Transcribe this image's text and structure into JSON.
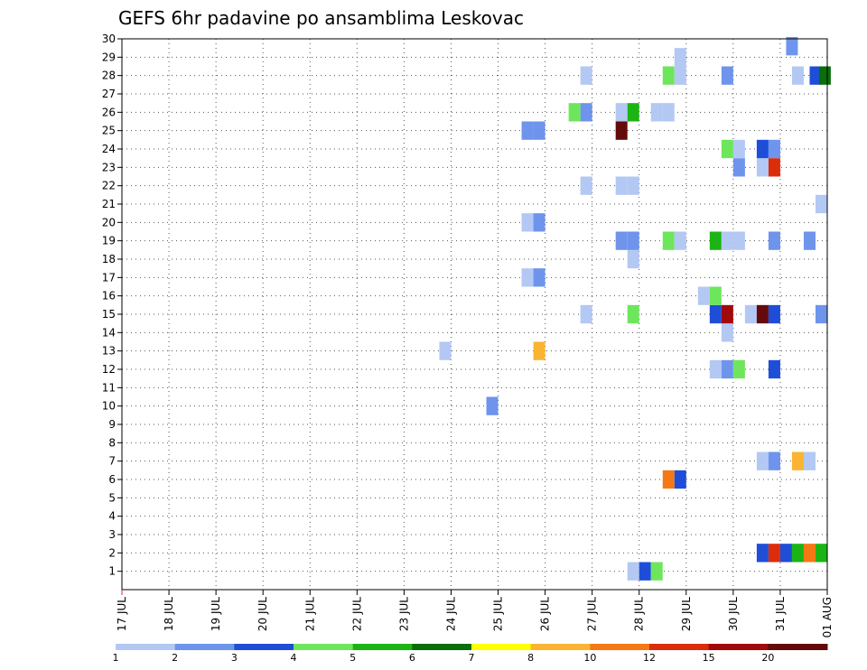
{
  "chart_data": {
    "type": "heatmap",
    "title": "GEFS 6hr padavine po ansamblima Leskovac",
    "xlabel": "",
    "ylabel": "",
    "x_range": [
      0,
      60
    ],
    "y_range": [
      0,
      30
    ],
    "x_tick_labels": [
      "17 JUL",
      "18 JUL",
      "19 JUL",
      "20 JUL",
      "21 JUL",
      "22 JUL",
      "23 JUL",
      "24 JUL",
      "25 JUL",
      "26 JUL",
      "27 JUL",
      "28 JUL",
      "29 JUL",
      "30 JUL",
      "31 JUL",
      "01 AUG"
    ],
    "y_tick_labels": [
      "1",
      "2",
      "3",
      "4",
      "5",
      "6",
      "7",
      "8",
      "9",
      "10",
      "11",
      "12",
      "13",
      "14",
      "15",
      "16",
      "17",
      "18",
      "19",
      "20",
      "21",
      "22",
      "23",
      "24",
      "25",
      "26",
      "27",
      "28",
      "29",
      "30"
    ],
    "grid": true,
    "colorbar": {
      "labels": [
        "1",
        "2",
        "3",
        "4",
        "5",
        "6",
        "7",
        "8",
        "10",
        "12",
        "15",
        "20"
      ],
      "colors": [
        "#b4c8f4",
        "#6e94ec",
        "#1e4ed8",
        "#6ee65c",
        "#1cb414",
        "#0a6e0a",
        "#ffff00",
        "#fab432",
        "#f57814",
        "#dc2d0a",
        "#a00a0a",
        "#640a0a"
      ]
    },
    "cells_note_units": "x = 6-hour step index from 17 JUL 00z, y = ensemble member, v = precipitation class index into colorbar",
    "cells": [
      {
        "x": 43.5,
        "y": 1,
        "v": 0
      },
      {
        "x": 44.5,
        "y": 1,
        "v": 2
      },
      {
        "x": 45.5,
        "y": 1,
        "v": 3
      },
      {
        "x": 54.5,
        "y": 2,
        "v": 2
      },
      {
        "x": 55.5,
        "y": 2,
        "v": 9
      },
      {
        "x": 56.5,
        "y": 2,
        "v": 2
      },
      {
        "x": 57.5,
        "y": 2,
        "v": 4
      },
      {
        "x": 58.5,
        "y": 2,
        "v": 8
      },
      {
        "x": 59.5,
        "y": 2,
        "v": 4
      },
      {
        "x": 46.5,
        "y": 6,
        "v": 8
      },
      {
        "x": 47.5,
        "y": 6,
        "v": 2
      },
      {
        "x": 54.5,
        "y": 7,
        "v": 0
      },
      {
        "x": 55.5,
        "y": 7,
        "v": 1
      },
      {
        "x": 57.5,
        "y": 7,
        "v": 7
      },
      {
        "x": 58.5,
        "y": 7,
        "v": 0
      },
      {
        "x": 31.5,
        "y": 10,
        "v": 1
      },
      {
        "x": 50.5,
        "y": 12,
        "v": 0
      },
      {
        "x": 51.5,
        "y": 12,
        "v": 1
      },
      {
        "x": 52.5,
        "y": 12,
        "v": 3
      },
      {
        "x": 55.5,
        "y": 12,
        "v": 2
      },
      {
        "x": 27.5,
        "y": 13,
        "v": 0
      },
      {
        "x": 35.5,
        "y": 13,
        "v": 7
      },
      {
        "x": 51.5,
        "y": 14,
        "v": 0
      },
      {
        "x": 39.5,
        "y": 15,
        "v": 0
      },
      {
        "x": 43.5,
        "y": 15,
        "v": 3
      },
      {
        "x": 50.5,
        "y": 15,
        "v": 2
      },
      {
        "x": 51.5,
        "y": 15,
        "v": 10
      },
      {
        "x": 53.5,
        "y": 15,
        "v": 0
      },
      {
        "x": 54.5,
        "y": 15,
        "v": 11
      },
      {
        "x": 55.5,
        "y": 15,
        "v": 2
      },
      {
        "x": 59.5,
        "y": 15,
        "v": 1
      },
      {
        "x": 49.5,
        "y": 16,
        "v": 0
      },
      {
        "x": 50.5,
        "y": 16,
        "v": 3
      },
      {
        "x": 34.5,
        "y": 17,
        "v": 0
      },
      {
        "x": 35.5,
        "y": 17,
        "v": 1
      },
      {
        "x": 43.5,
        "y": 18,
        "v": 0
      },
      {
        "x": 42.5,
        "y": 19,
        "v": 1
      },
      {
        "x": 43.5,
        "y": 19,
        "v": 1
      },
      {
        "x": 46.5,
        "y": 19,
        "v": 3
      },
      {
        "x": 47.5,
        "y": 19,
        "v": 0
      },
      {
        "x": 50.5,
        "y": 19,
        "v": 4
      },
      {
        "x": 51.5,
        "y": 19,
        "v": 0
      },
      {
        "x": 52.5,
        "y": 19,
        "v": 0
      },
      {
        "x": 55.5,
        "y": 19,
        "v": 1
      },
      {
        "x": 58.5,
        "y": 19,
        "v": 1
      },
      {
        "x": 34.5,
        "y": 20,
        "v": 0
      },
      {
        "x": 35.5,
        "y": 20,
        "v": 1
      },
      {
        "x": 59.5,
        "y": 21,
        "v": 0
      },
      {
        "x": 39.5,
        "y": 22,
        "v": 0
      },
      {
        "x": 42.5,
        "y": 22,
        "v": 0
      },
      {
        "x": 43.5,
        "y": 22,
        "v": 0
      },
      {
        "x": 54.5,
        "y": 23,
        "v": 0
      },
      {
        "x": 52.5,
        "y": 23,
        "v": 1
      },
      {
        "x": 55.5,
        "y": 23,
        "v": 9
      },
      {
        "x": 51.5,
        "y": 24,
        "v": 3
      },
      {
        "x": 52.5,
        "y": 24,
        "v": 0
      },
      {
        "x": 54.5,
        "y": 24,
        "v": 2
      },
      {
        "x": 55.5,
        "y": 24,
        "v": 1
      },
      {
        "x": 34.5,
        "y": 25,
        "v": 1
      },
      {
        "x": 35.5,
        "y": 25,
        "v": 1
      },
      {
        "x": 42.5,
        "y": 25,
        "v": 11
      },
      {
        "x": 38.5,
        "y": 26,
        "v": 3
      },
      {
        "x": 39.5,
        "y": 26,
        "v": 1
      },
      {
        "x": 42.5,
        "y": 26,
        "v": 0
      },
      {
        "x": 43.5,
        "y": 26,
        "v": 4
      },
      {
        "x": 45.5,
        "y": 26,
        "v": 0
      },
      {
        "x": 46.5,
        "y": 26,
        "v": 0
      },
      {
        "x": 39.5,
        "y": 28,
        "v": 0
      },
      {
        "x": 46.5,
        "y": 28,
        "v": 3
      },
      {
        "x": 47.5,
        "y": 28,
        "v": 0
      },
      {
        "x": 51.5,
        "y": 28,
        "v": 1
      },
      {
        "x": 57.5,
        "y": 28,
        "v": 0
      },
      {
        "x": 59.0,
        "y": 28,
        "v": 2
      },
      {
        "x": 59.8,
        "y": 28,
        "v": 5
      },
      {
        "x": 47.5,
        "y": 29,
        "v": 0
      },
      {
        "x": 57.0,
        "y": 29.6,
        "v": 1
      }
    ]
  }
}
